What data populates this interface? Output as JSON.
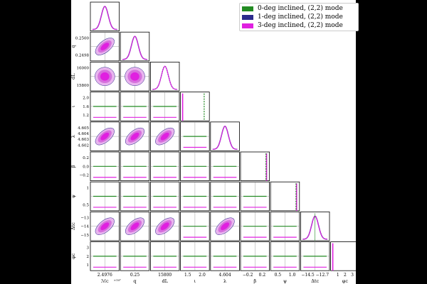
{
  "legend": [
    {
      "name": "0-deg inclined, (2,2) mode",
      "color": "#228B22"
    },
    {
      "name": "1-deg inclined, (2,2) mode",
      "color": "#2B2B8C"
    },
    {
      "name": "3-deg inclined, (2,2) mode",
      "color": "#E020E0"
    }
  ],
  "chart_data": {
    "type": "corner",
    "parameters": [
      {
        "name": "Mc",
        "xlabel": "ℳc",
        "ylabel": "",
        "ticks": [
          "2.4976"
        ],
        "offset": "×10⁶"
      },
      {
        "name": "q",
        "xlabel": "q",
        "ylabel": "q",
        "ticks": [
          "0.25"
        ],
        "yticks": [
          "0.2500",
          "0.2498"
        ]
      },
      {
        "name": "dL",
        "xlabel": "dL",
        "ylabel": "dL",
        "ticks": [
          "15800"
        ],
        "yticks": [
          "16000",
          "15800"
        ]
      },
      {
        "name": "i",
        "xlabel": "ι",
        "ylabel": "ι",
        "ticks": [
          "1.5",
          "2.0"
        ],
        "yticks": [
          "2.0",
          "1.6",
          "1.2"
        ]
      },
      {
        "name": "lambda",
        "xlabel": "λ",
        "ylabel": "λ",
        "ticks": [
          "4.604"
        ],
        "yticks": [
          "4.605",
          "4.604",
          "4.603",
          "4.602"
        ]
      },
      {
        "name": "beta",
        "xlabel": "β",
        "ylabel": "β",
        "ticks": [
          "−0.2",
          "0.2"
        ],
        "yticks": [
          "0.2",
          "0.0",
          "−0.2"
        ]
      },
      {
        "name": "psi",
        "xlabel": "ψ",
        "ylabel": "ψ",
        "ticks": [
          "0.5",
          "1.0"
        ],
        "yticks": [
          "1",
          "0.5"
        ]
      },
      {
        "name": "Dtc",
        "xlabel": "Δtc",
        "ylabel": "Δtc",
        "ticks": [
          "−14.5",
          "−12.7"
        ],
        "yticks": [
          "−13",
          "−14",
          "−15"
        ]
      },
      {
        "name": "phic",
        "xlabel": "φc",
        "ylabel": "φc",
        "ticks": [
          "1",
          "2",
          "3"
        ],
        "yticks": [
          "3",
          "2",
          "1"
        ]
      }
    ],
    "correlated_pairs": [
      [
        1,
        0
      ],
      [
        4,
        0
      ],
      [
        4,
        1
      ],
      [
        4,
        2
      ],
      [
        7,
        0
      ],
      [
        7,
        1
      ],
      [
        7,
        2
      ],
      [
        7,
        4
      ]
    ],
    "round_pairs": [
      [
        2,
        0
      ],
      [
        2,
        1
      ]
    ],
    "grid": false
  }
}
